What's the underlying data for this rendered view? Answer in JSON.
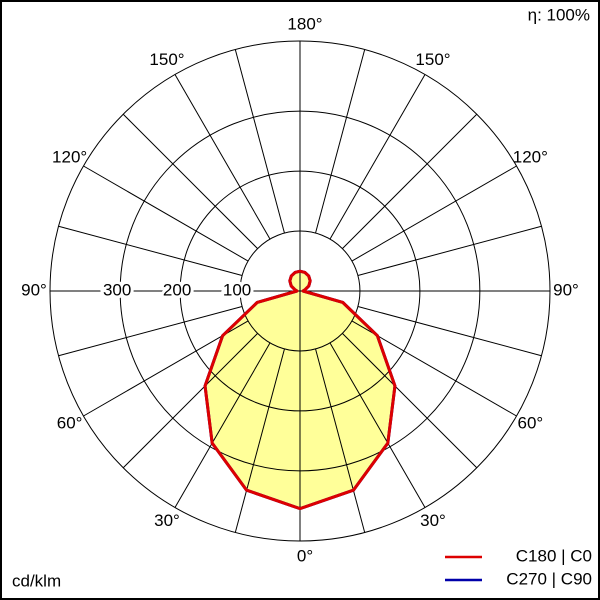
{
  "chart_data": {
    "type": "polar",
    "efficiency_label": "η: 100%",
    "unit_label": "cd/klm",
    "rlim": [
      0,
      417
    ],
    "rticks": [
      100,
      200,
      300
    ],
    "thetagrid": [
      0,
      15,
      30,
      45,
      60,
      75,
      90,
      105,
      120,
      135,
      150,
      165,
      180
    ],
    "thetaticks": [
      {
        "value": 0,
        "label": "0°"
      },
      {
        "value": 30,
        "label": "30°"
      },
      {
        "value": 60,
        "label": "60°"
      },
      {
        "value": 90,
        "label": "90°"
      },
      {
        "value": 120,
        "label": "120°"
      },
      {
        "value": 150,
        "label": "150°"
      },
      {
        "value": 180,
        "label": "180°"
      }
    ],
    "angles": [
      0,
      15,
      30,
      45,
      60,
      75,
      90,
      105,
      120,
      135,
      150,
      165,
      180
    ],
    "fill_color": "#ffff99",
    "series": [
      {
        "name": "C270 | C90",
        "color": "#0000aa",
        "values": [
          363,
          344,
          293,
          224,
          149,
          74,
          5,
          9,
          17,
          24,
          29,
          32,
          33
        ]
      },
      {
        "name": "C180 | C0",
        "color": "#dd0000",
        "values": [
          363,
          344,
          293,
          224,
          149,
          74,
          5,
          9,
          17,
          24,
          29,
          32,
          33
        ]
      }
    ]
  }
}
